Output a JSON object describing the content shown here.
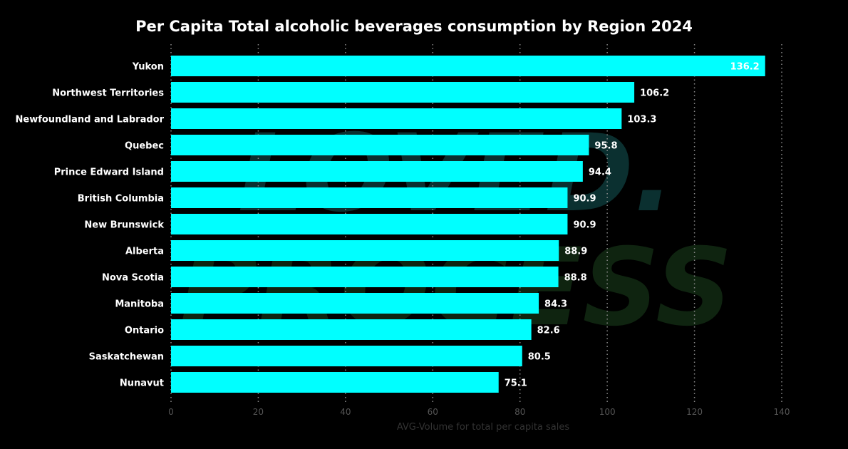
{
  "colors": {
    "background": "#000000",
    "bar": "#00ffff",
    "grid": "#8a8a8a",
    "title": "#ffffff",
    "category_label": "#ffffff",
    "value_label_outside": "#ffffff",
    "value_label_inside": "#ffffff",
    "tick_label": "#555555",
    "axis_title": "#333333",
    "watermark_top": "#0b3030",
    "watermark_bottom": "#0f2410"
  },
  "watermark": {
    "line1": "LOVED.",
    "line2": "PROCESS"
  },
  "chart_data": {
    "type": "bar",
    "orientation": "horizontal",
    "title": "Per Capita Total alcoholic beverages consumption by Region 2024",
    "xlabel": "AVG-Volume for total per capita sales",
    "ylabel": "",
    "xlim": [
      0,
      140
    ],
    "xticks": [
      0,
      20,
      40,
      60,
      80,
      100,
      120,
      140
    ],
    "grid": "vertical dotted",
    "categories": [
      "Yukon",
      "Northwest Territories",
      "Newfoundland and Labrador",
      "Quebec",
      "Prince Edward Island",
      "British Columbia",
      "New Brunswick",
      "Alberta",
      "Nova Scotia",
      "Manitoba",
      "Ontario",
      "Saskatchewan",
      "Nunavut"
    ],
    "values": [
      136.2,
      106.2,
      103.3,
      95.8,
      94.4,
      90.9,
      90.9,
      88.9,
      88.8,
      84.3,
      82.6,
      80.5,
      75.1
    ],
    "value_labels": [
      "136.2",
      "106.2",
      "103.3",
      "95.8",
      "94.4",
      "90.9",
      "90.9",
      "88.9",
      "88.8",
      "84.3",
      "82.6",
      "80.5",
      "75.1"
    ]
  }
}
